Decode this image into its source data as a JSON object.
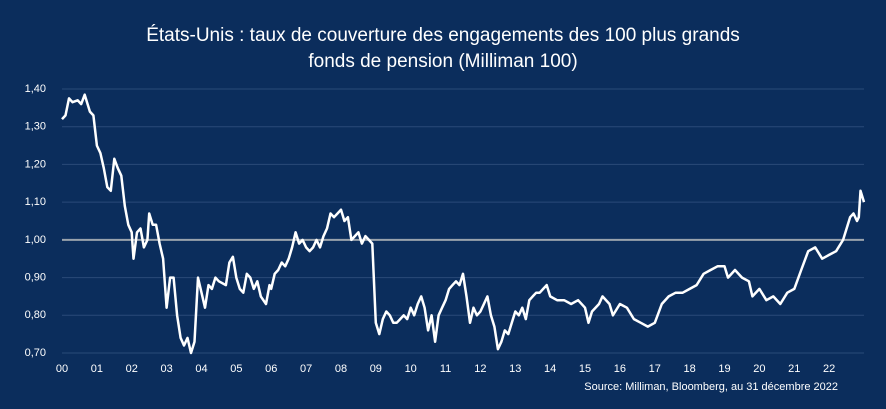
{
  "chart_data": {
    "type": "line",
    "title": [
      "États-Unis : taux de couverture des engagements des 100 plus grands",
      "fonds de pension (Milliman 100)"
    ],
    "source": "Source: Milliman, Bloomberg, au 31 décembre 2022",
    "x": [
      0,
      0.1,
      0.2,
      0.3,
      0.45,
      0.55,
      0.65,
      0.8,
      0.9,
      1.0,
      1.1,
      1.2,
      1.3,
      1.4,
      1.5,
      1.6,
      1.7,
      1.8,
      1.9,
      2.0,
      2.05,
      2.15,
      2.25,
      2.35,
      2.45,
      2.5,
      2.6,
      2.7,
      2.8,
      2.9,
      3.0,
      3.1,
      3.2,
      3.3,
      3.4,
      3.5,
      3.6,
      3.7,
      3.8,
      3.9,
      4.0,
      4.1,
      4.2,
      4.3,
      4.4,
      4.5,
      4.7,
      4.8,
      4.9,
      5.0,
      5.1,
      5.2,
      5.3,
      5.4,
      5.5,
      5.6,
      5.7,
      5.85,
      5.95,
      6.0,
      6.1,
      6.2,
      6.3,
      6.4,
      6.5,
      6.6,
      6.7,
      6.8,
      6.9,
      7.0,
      7.1,
      7.2,
      7.3,
      7.4,
      7.5,
      7.6,
      7.7,
      7.8,
      7.9,
      8.0,
      8.1,
      8.2,
      8.3,
      8.4,
      8.5,
      8.6,
      8.7,
      8.8,
      8.9,
      9.0,
      9.1,
      9.2,
      9.3,
      9.4,
      9.5,
      9.6,
      9.7,
      9.8,
      9.9,
      10.0,
      10.1,
      10.2,
      10.3,
      10.4,
      10.5,
      10.6,
      10.7,
      10.8,
      10.9,
      11.0,
      11.1,
      11.2,
      11.3,
      11.4,
      11.5,
      11.6,
      11.7,
      11.8,
      11.9,
      12.0,
      12.1,
      12.2,
      12.3,
      12.4,
      12.5,
      12.6,
      12.7,
      12.8,
      12.9,
      13.0,
      13.1,
      13.2,
      13.3,
      13.4,
      13.5,
      13.6,
      13.7,
      13.8,
      13.9,
      14.0,
      14.2,
      14.4,
      14.6,
      14.8,
      15.0,
      15.1,
      15.2,
      15.4,
      15.5,
      15.7,
      15.8,
      16.0,
      16.2,
      16.4,
      16.6,
      16.8,
      17.0,
      17.2,
      17.4,
      17.6,
      17.8,
      18.0,
      18.2,
      18.4,
      18.6,
      18.8,
      19.0,
      19.1,
      19.3,
      19.5,
      19.7,
      19.8,
      20.0,
      20.2,
      20.4,
      20.6,
      20.8,
      21.0,
      21.2,
      21.4,
      21.6,
      21.8,
      22.0,
      22.2,
      22.4,
      22.6,
      22.7,
      22.8,
      22.85,
      22.9,
      23.0
    ],
    "series": [
      {
        "color": "#ffffff",
        "values": [
          1.32,
          1.33,
          1.375,
          1.365,
          1.37,
          1.36,
          1.385,
          1.34,
          1.33,
          1.25,
          1.23,
          1.19,
          1.14,
          1.13,
          1.215,
          1.19,
          1.17,
          1.09,
          1.04,
          1.02,
          0.95,
          1.02,
          1.03,
          0.98,
          1.0,
          1.07,
          1.04,
          1.04,
          0.99,
          0.95,
          0.82,
          0.9,
          0.9,
          0.8,
          0.74,
          0.72,
          0.74,
          0.7,
          0.73,
          0.9,
          0.86,
          0.82,
          0.88,
          0.87,
          0.9,
          0.89,
          0.88,
          0.94,
          0.955,
          0.9,
          0.87,
          0.86,
          0.91,
          0.9,
          0.87,
          0.89,
          0.85,
          0.83,
          0.88,
          0.87,
          0.91,
          0.92,
          0.94,
          0.93,
          0.95,
          0.98,
          1.02,
          0.99,
          1.0,
          0.98,
          0.97,
          0.98,
          1.0,
          0.98,
          1.01,
          1.03,
          1.07,
          1.06,
          1.07,
          1.08,
          1.05,
          1.06,
          1.0,
          1.01,
          1.02,
          0.99,
          1.01,
          1.0,
          0.99,
          0.78,
          0.75,
          0.79,
          0.81,
          0.8,
          0.78,
          0.78,
          0.79,
          0.8,
          0.79,
          0.82,
          0.8,
          0.83,
          0.85,
          0.82,
          0.76,
          0.8,
          0.73,
          0.8,
          0.82,
          0.84,
          0.87,
          0.88,
          0.89,
          0.88,
          0.91,
          0.85,
          0.78,
          0.82,
          0.8,
          0.81,
          0.83,
          0.85,
          0.8,
          0.77,
          0.71,
          0.73,
          0.76,
          0.75,
          0.78,
          0.81,
          0.8,
          0.82,
          0.79,
          0.84,
          0.85,
          0.86,
          0.86,
          0.87,
          0.88,
          0.85,
          0.84,
          0.84,
          0.83,
          0.84,
          0.82,
          0.78,
          0.81,
          0.83,
          0.85,
          0.83,
          0.8,
          0.83,
          0.82,
          0.79,
          0.78,
          0.77,
          0.78,
          0.83,
          0.85,
          0.86,
          0.86,
          0.87,
          0.88,
          0.91,
          0.92,
          0.93,
          0.93,
          0.9,
          0.92,
          0.9,
          0.89,
          0.85,
          0.87,
          0.84,
          0.85,
          0.83,
          0.86,
          0.87,
          0.92,
          0.97,
          0.98,
          0.95,
          0.96,
          0.97,
          1.0,
          1.06,
          1.07,
          1.05,
          1.06,
          1.13,
          1.1
        ]
      }
    ],
    "xlim": [
      0,
      23
    ],
    "xticks": [
      {
        "value": 0,
        "label": "00"
      },
      {
        "value": 1,
        "label": "01"
      },
      {
        "value": 2,
        "label": "02"
      },
      {
        "value": 3,
        "label": "03"
      },
      {
        "value": 4,
        "label": "04"
      },
      {
        "value": 5,
        "label": "05"
      },
      {
        "value": 6,
        "label": "06"
      },
      {
        "value": 7,
        "label": "07"
      },
      {
        "value": 8,
        "label": "08"
      },
      {
        "value": 9,
        "label": "09"
      },
      10,
      11,
      12,
      13,
      14,
      15,
      16,
      17,
      18,
      19,
      20,
      21,
      22
    ],
    "ylim": [
      0.7,
      1.4
    ],
    "yticks": [
      {
        "value": 0.7,
        "label": "0,70"
      },
      {
        "value": 0.8,
        "label": "0,80"
      },
      {
        "value": 0.9,
        "label": "0,90"
      },
      {
        "value": 1.0,
        "label": "1,00"
      },
      {
        "value": 1.1,
        "label": "1,10"
      },
      {
        "value": 1.2,
        "label": "1,20"
      },
      {
        "value": 1.3,
        "label": "1,30"
      },
      {
        "value": 1.4,
        "label": "1,40"
      }
    ],
    "reference_line": 1.0,
    "grid": true
  }
}
